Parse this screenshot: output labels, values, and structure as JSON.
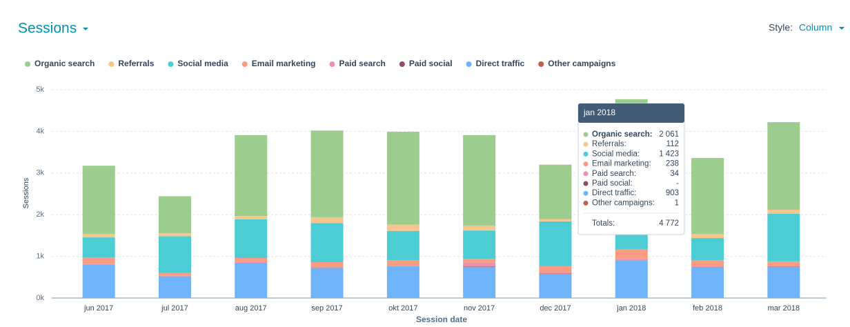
{
  "header": {
    "title": "Sessions",
    "style_label": "Style:",
    "style_value": "Column"
  },
  "chart_data": {
    "type": "stacked_bar",
    "y_label": "Sessions",
    "x_label": "Session date",
    "categories": [
      "jun 2017",
      "jul 2017",
      "aug 2017",
      "sep 2017",
      "okt 2017",
      "nov 2017",
      "dec 2017",
      "jan 2018",
      "feb 2018",
      "mar 2018"
    ],
    "series": [
      {
        "name": "Organic search",
        "color": "#9ccd8e",
        "values": [
          1640,
          890,
          1940,
          2080,
          2230,
          2170,
          1310,
          2061,
          1820,
          2100
        ]
      },
      {
        "name": "Referrals",
        "color": "#f5c78e",
        "values": [
          80,
          70,
          80,
          140,
          150,
          120,
          50,
          112,
          100,
          100
        ]
      },
      {
        "name": "Social media",
        "color": "#4ccdd4",
        "values": [
          480,
          880,
          930,
          940,
          700,
          680,
          1070,
          1423,
          530,
          1140
        ]
      },
      {
        "name": "Email marketing",
        "color": "#fa9c83",
        "values": [
          160,
          70,
          100,
          115,
          130,
          90,
          150,
          238,
          150,
          100
        ]
      },
      {
        "name": "Paid search",
        "color": "#ea90b1",
        "values": [
          10,
          10,
          15,
          20,
          15,
          90,
          30,
          34,
          15,
          25
        ]
      },
      {
        "name": "Paid social",
        "color": "#8f4a6e",
        "values": [
          0,
          0,
          0,
          0,
          0,
          10,
          0,
          null,
          0,
          5
        ]
      },
      {
        "name": "Direct traffic",
        "color": "#6fb3f8",
        "values": [
          800,
          520,
          840,
          720,
          760,
          740,
          580,
          903,
          740,
          740
        ]
      },
      {
        "name": "Other campaigns",
        "color": "#c35d4e",
        "values": [
          5,
          3,
          5,
          5,
          5,
          10,
          10,
          1,
          5,
          10
        ]
      }
    ],
    "ylim": [
      0,
      5000
    ],
    "yticks": [
      {
        "value": 0,
        "label": "0k"
      },
      {
        "value": 1000,
        "label": "1k"
      },
      {
        "value": 2000,
        "label": "2k"
      },
      {
        "value": 3000,
        "label": "3k"
      },
      {
        "value": 4000,
        "label": "4k"
      },
      {
        "value": 5000,
        "label": "5k"
      }
    ],
    "grid": true
  },
  "tooltip": {
    "title": "jan 2018",
    "rows": [
      {
        "label": "Organic search:",
        "value": {
          "value": 2061,
          "label": "2 061"
        }
      },
      {
        "label": "Referrals:",
        "value": 112
      },
      {
        "label": "Social media:",
        "value": {
          "value": 1423,
          "label": "1 423"
        }
      },
      {
        "label": "Email marketing:",
        "value": 238
      },
      {
        "label": "Paid search:",
        "value": 34
      },
      {
        "label": "Paid social:",
        "value": {
          "value": null,
          "label": "-"
        }
      },
      {
        "label": "Direct traffic:",
        "value": 903
      },
      {
        "label": "Other campaigns:",
        "value": 1
      }
    ],
    "total": {
      "label": "Totals:",
      "value": {
        "value": 4772,
        "label": "4 772"
      }
    }
  }
}
